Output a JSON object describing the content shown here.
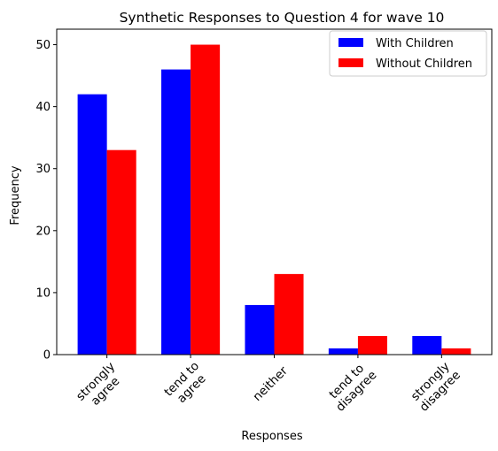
{
  "chart_data": {
    "type": "bar",
    "title": "Synthetic Responses to Question 4 for wave 10",
    "xlabel": "Responses",
    "ylabel": "Frequency",
    "categories": [
      [
        "strongly",
        "agree"
      ],
      [
        "tend to",
        "agree"
      ],
      [
        "neither"
      ],
      [
        "tend to",
        "disagree"
      ],
      [
        "strongly",
        "disagree"
      ]
    ],
    "series": [
      {
        "name": "With Children",
        "color": "#0000ff",
        "values": [
          42,
          46,
          8,
          1,
          3
        ]
      },
      {
        "name": "Without Children",
        "color": "#ff0000",
        "values": [
          33,
          50,
          13,
          3,
          1
        ]
      }
    ],
    "ylim": [
      0,
      52.5
    ],
    "yticks": [
      0,
      10,
      20,
      30,
      40,
      50
    ],
    "grid": false,
    "legend_position": "top-right",
    "category_label_rotation_deg": 45
  }
}
